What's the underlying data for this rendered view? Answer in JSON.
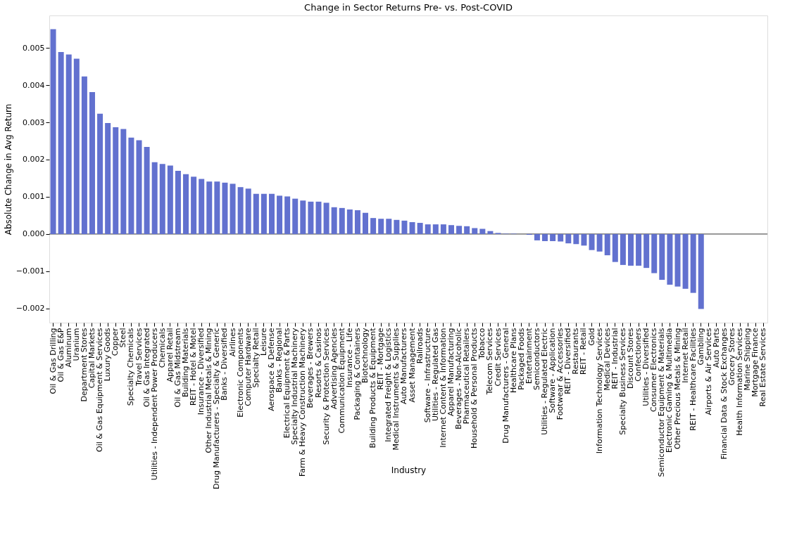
{
  "chart_data": {
    "type": "bar",
    "title": "Change in Sector Returns Pre- vs. Post-COVID",
    "xlabel": "Industry",
    "ylabel": "Absolute Change in Avg Return",
    "color": "#6271cf",
    "categories": [
      "Oil & Gas Drilling",
      "Oil & Gas E&P",
      "Aluminum",
      "Uranium",
      "Department Stores",
      "Capital Markets",
      "Oil & Gas Equipment & Services",
      "Luxury Goods",
      "Copper",
      "Steel",
      "Specialty Chemicals",
      "Travel Services",
      "Oil & Gas Integrated",
      "Utilities - Independent Power Producers",
      "Chemicals",
      "Apparel Retail",
      "Oil & Gas Midstream",
      "Building Materials",
      "REIT - Hotel & Motel",
      "Insurance - Diversified",
      "Other Industrial Metals & Mining",
      "Drug Manufacturers - Specialty & Generic",
      "Banks - Diversified",
      "Airlines",
      "Electronic Components",
      "Computer Hardware",
      "Specialty Retail",
      "Leisure",
      "Aerospace & Defense",
      "Banks - Regional",
      "Electrical Equipment & Parts",
      "Specialty Industrial Machinery",
      "Farm & Heavy Construction Machinery",
      "Beverages - Brewers",
      "Resorts & Casinos",
      "Security & Protection Services",
      "Advertising Agencies",
      "Communication Equipment",
      "Insurance - Life",
      "Packaging & Containers",
      "Biotechnology",
      "Building Products & Equipment",
      "REIT - Mortgage",
      "Integrated Freight & Logistics",
      "Medical Instruments & Supplies",
      "Auto Manufacturers",
      "Asset Management",
      "Railroads",
      "Software - Infrastructure",
      "Utilities - Regulated Gas",
      "Internet Content & Information",
      "Apparel Manufacturing",
      "Beverages - Non-Alcoholic",
      "Pharmaceutical Retailers",
      "Household & Personal Products",
      "Tobacco",
      "Telecom Services",
      "Credit Services",
      "Drug Manufacturers - General",
      "Healthcare Plans",
      "Packaged Foods",
      "Entertainment",
      "Semiconductors",
      "Utilities - Regulated Electric",
      "Software - Application",
      "Footwear & Accessories",
      "REIT - Diversified",
      "Restaurants",
      "REIT - Retail",
      "Gold",
      "Information Technology Services",
      "Medical Devices",
      "REIT - Industrial",
      "Specialty Business Services",
      "Discount Stores",
      "Confectioners",
      "Utilities - Diversified",
      "Consumer Electronics",
      "Semiconductor Equipment & Materials",
      "Electronic Gaming & Multimedia",
      "Other Precious Metals & Mining",
      "Internet Retail",
      "REIT - Healthcare Facilities",
      "Gambling",
      "Airports & Air Services",
      "Auto Parts",
      "Financial Data & Stock Exchanges",
      "Grocery Stores",
      "Health Information Services",
      "Marine Shipping",
      "Mortgage Finance",
      "Real Estate Services"
    ],
    "values": [
      0.0055,
      0.00489,
      0.00482,
      0.00471,
      0.00423,
      0.00381,
      0.00323,
      0.00298,
      0.00287,
      0.00282,
      0.00259,
      0.00252,
      0.00234,
      0.00193,
      0.00188,
      0.00184,
      0.0017,
      0.00161,
      0.00154,
      0.00148,
      0.00141,
      0.00141,
      0.00138,
      0.00135,
      0.00126,
      0.00122,
      0.00108,
      0.00108,
      0.00108,
      0.00103,
      0.00101,
      0.00095,
      0.0009,
      0.00087,
      0.00087,
      0.00084,
      0.00072,
      0.0007,
      0.00066,
      0.00064,
      0.00057,
      0.00043,
      0.00041,
      0.00041,
      0.00038,
      0.00036,
      0.00032,
      0.0003,
      0.00026,
      0.00026,
      0.00026,
      0.00024,
      0.00022,
      0.00021,
      0.00016,
      0.00014,
      8e-05,
      3e-05,
      1e-05,
      1e-05,
      0.0,
      -2e-05,
      -0.00017,
      -0.00019,
      -0.00019,
      -0.0002,
      -0.00025,
      -0.00027,
      -0.00031,
      -0.00043,
      -0.00047,
      -0.00057,
      -0.00075,
      -0.00083,
      -0.00085,
      -0.00085,
      -0.00091,
      -0.00105,
      -0.00123,
      -0.00136,
      -0.00141,
      -0.00147,
      -0.00158,
      -0.00201,
      null,
      null,
      null,
      null,
      null,
      null,
      null,
      null
    ],
    "ylim": [
      -0.00238,
      0.00587
    ],
    "yticks": [
      {
        "value": -0.002,
        "label": "−0.002"
      },
      {
        "value": -0.001,
        "label": "−0.001"
      },
      {
        "value": 0,
        "label": "0.000"
      },
      {
        "value": 0.001,
        "label": "0.001"
      },
      {
        "value": 0.002,
        "label": "0.002"
      },
      {
        "value": 0.003,
        "label": "0.003"
      },
      {
        "value": 0.004,
        "label": "0.004"
      },
      {
        "value": 0.005,
        "label": "0.005"
      }
    ],
    "ref_lines": [
      {
        "axis": "y",
        "value": 0,
        "color": "#333333"
      }
    ],
    "grid": false
  }
}
